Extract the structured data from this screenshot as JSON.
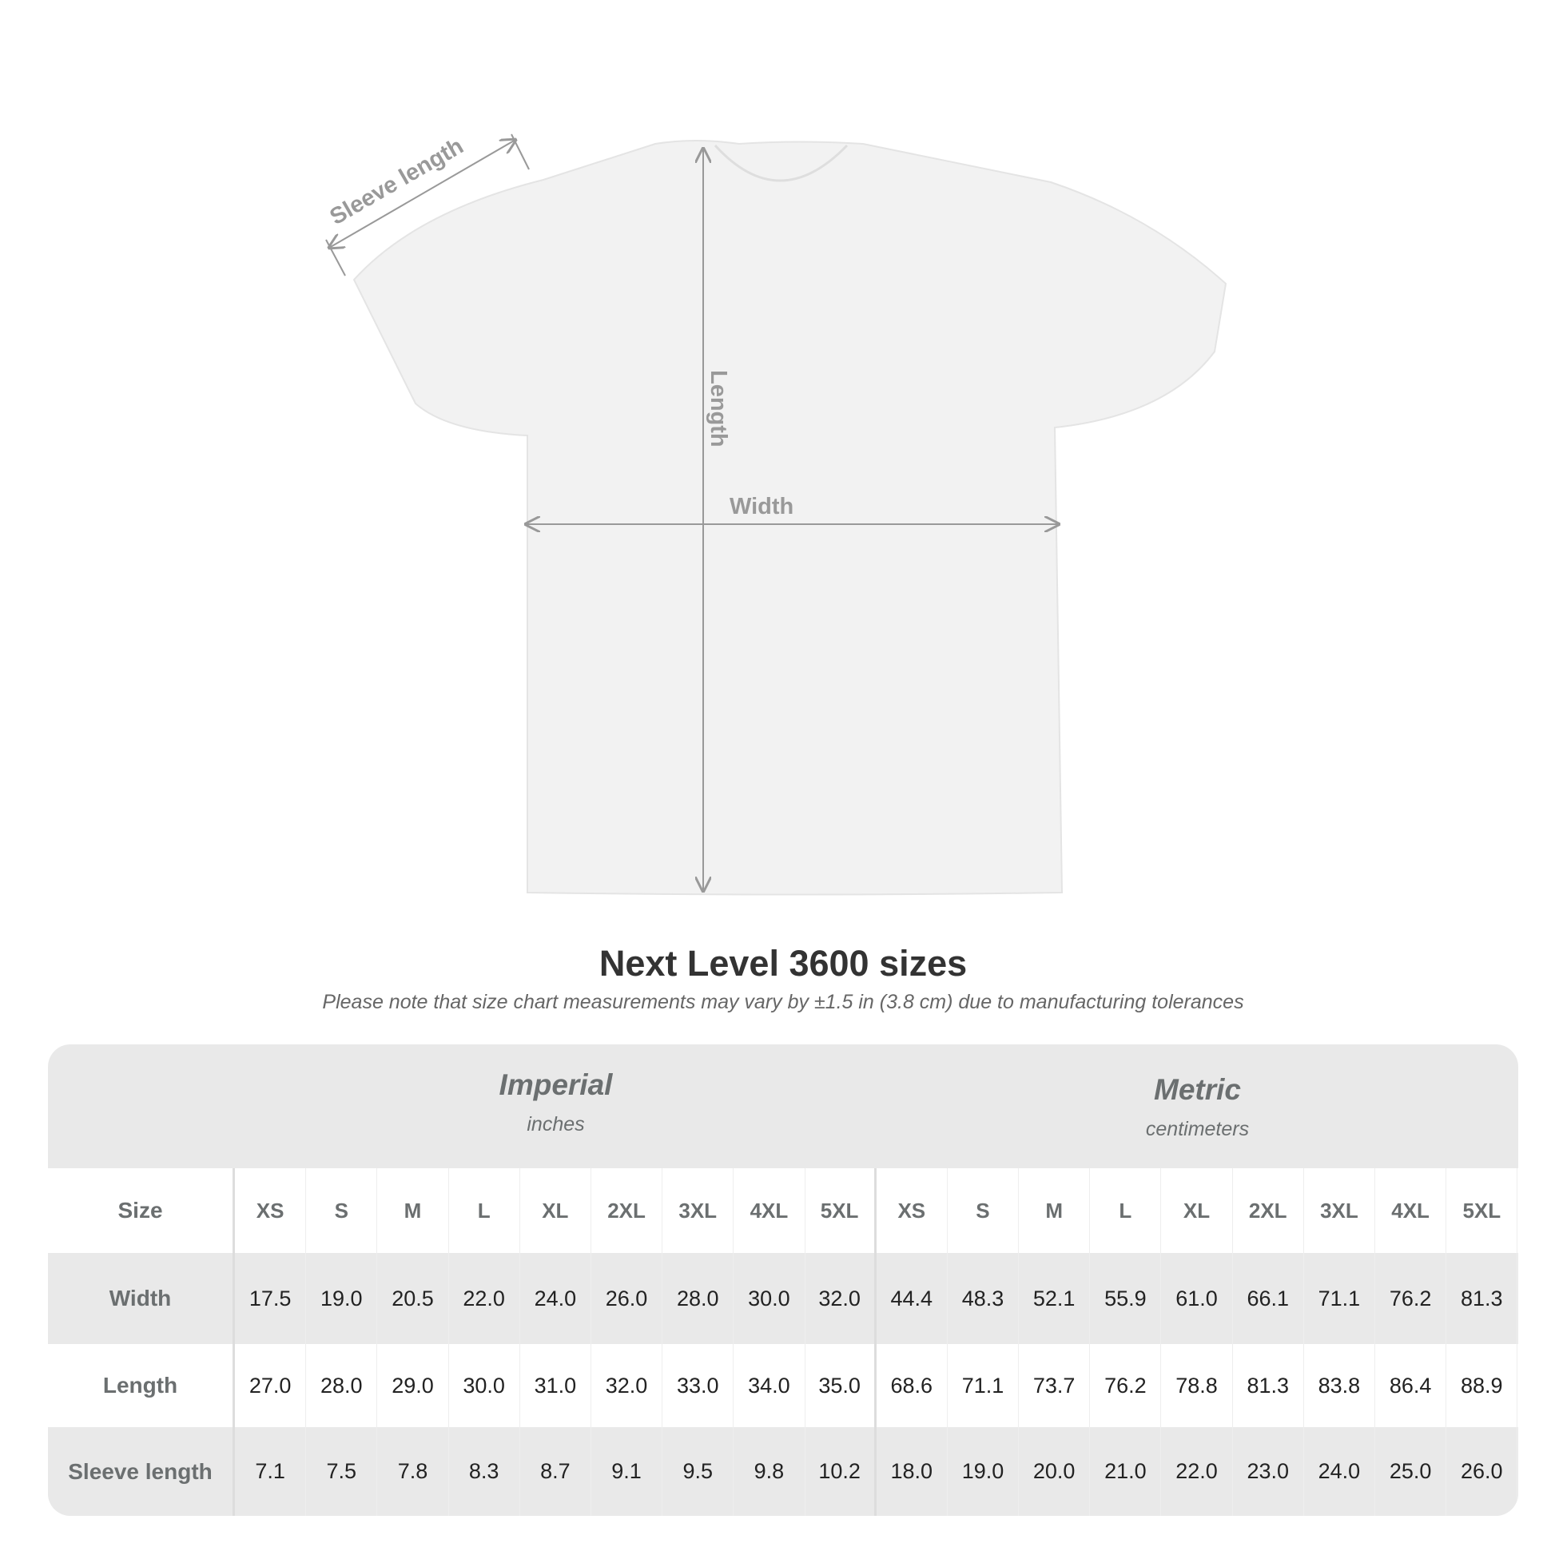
{
  "diagram": {
    "sleeve_label": "Sleeve length",
    "length_label": "Length",
    "width_label": "Width"
  },
  "title": "Next Level 3600 sizes",
  "note": "Please note that size chart measurements may vary by ±1.5 in (3.8 cm) due to manufacturing tolerances",
  "table": {
    "imperial": {
      "name": "Imperial",
      "unit": "inches"
    },
    "metric": {
      "name": "Metric",
      "unit": "centimeters"
    },
    "rows": [
      {
        "label": "Size",
        "imperial": [
          "XS",
          "S",
          "M",
          "L",
          "XL",
          "2XL",
          "3XL",
          "4XL",
          "5XL"
        ],
        "metric": [
          "XS",
          "S",
          "M",
          "L",
          "XL",
          "2XL",
          "3XL",
          "4XL",
          "5XL"
        ]
      },
      {
        "label": "Width",
        "imperial": [
          "17.5",
          "19.0",
          "20.5",
          "22.0",
          "24.0",
          "26.0",
          "28.0",
          "30.0",
          "32.0"
        ],
        "metric": [
          "44.4",
          "48.3",
          "52.1",
          "55.9",
          "61.0",
          "66.1",
          "71.1",
          "76.2",
          "81.3"
        ]
      },
      {
        "label": "Length",
        "imperial": [
          "27.0",
          "28.0",
          "29.0",
          "30.0",
          "31.0",
          "32.0",
          "33.0",
          "34.0",
          "35.0"
        ],
        "metric": [
          "68.6",
          "71.1",
          "73.7",
          "76.2",
          "78.8",
          "81.3",
          "83.8",
          "86.4",
          "88.9"
        ]
      },
      {
        "label": "Sleeve length",
        "imperial": [
          "7.1",
          "7.5",
          "7.8",
          "8.3",
          "8.7",
          "9.1",
          "9.5",
          "9.8",
          "10.2"
        ],
        "metric": [
          "18.0",
          "19.0",
          "20.0",
          "21.0",
          "22.0",
          "23.0",
          "24.0",
          "25.0",
          "26.0"
        ]
      }
    ]
  }
}
